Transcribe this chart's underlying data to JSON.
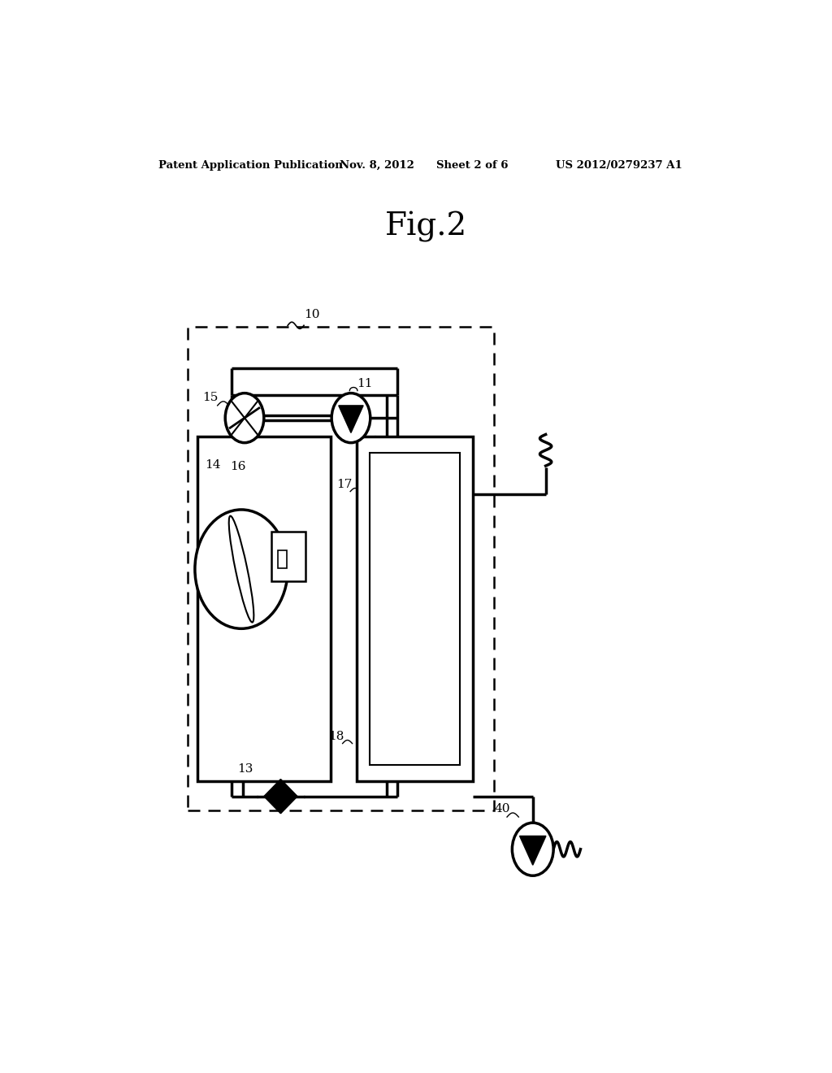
{
  "bg_color": "#ffffff",
  "title_header": "Fig.2",
  "patent_text": "Patent Application Publication",
  "patent_date": "Nov. 8, 2012",
  "patent_sheet": "Sheet 2 of 6",
  "patent_number": "US 2012/0279237 A1"
}
